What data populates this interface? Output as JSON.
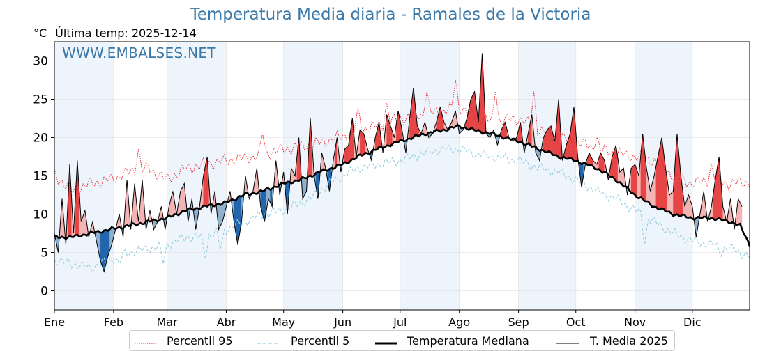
{
  "title": "Temperatura Media diaria - Ramales de la Victoria",
  "unit": "°C",
  "last_temp_label": "Última temp: 2025-12-14",
  "watermark": "WWW.EMBALSES.NET",
  "colors": {
    "p95": "#e8202a",
    "p5": "#9ccfe0",
    "median": "#000000",
    "media2025": "#000000",
    "above_strong": "#e64545",
    "above_light": "#f4b4b4",
    "below_strong": "#2166ac",
    "below_light": "#8fb1cd",
    "band": "#eef4fb",
    "title": "#3a78a8"
  },
  "chart_data": {
    "type": "line",
    "x_unit": "day of year",
    "xlim": [
      1,
      365
    ],
    "ylim": [
      -2.5,
      32.5
    ],
    "ytick_values": [
      0,
      5,
      10,
      15,
      20,
      25,
      30
    ],
    "month_labels": [
      "Ene",
      "Feb",
      "Mar",
      "Abr",
      "May",
      "Jun",
      "Jul",
      "Ago",
      "Sep",
      "Oct",
      "Nov",
      "Dic"
    ],
    "month_starts": [
      1,
      32,
      60,
      91,
      121,
      152,
      182,
      213,
      244,
      274,
      305,
      335
    ],
    "grid": true,
    "legend_position": "bottom",
    "series": [
      {
        "name": "Percentil 95",
        "style": "dotted red",
        "keypoints": [
          [
            1,
            15.2
          ],
          [
            10,
            13
          ],
          [
            20,
            14
          ],
          [
            30,
            14.5
          ],
          [
            40,
            15.5
          ],
          [
            50,
            16
          ],
          [
            60,
            14.5
          ],
          [
            70,
            16
          ],
          [
            80,
            16.5
          ],
          [
            91,
            17
          ],
          [
            105,
            17.5
          ],
          [
            121,
            18.5
          ],
          [
            135,
            19
          ],
          [
            150,
            20
          ],
          [
            160,
            21
          ],
          [
            170,
            21.5
          ],
          [
            182,
            22.5
          ],
          [
            195,
            23
          ],
          [
            205,
            23.5
          ],
          [
            213,
            24
          ],
          [
            220,
            23
          ],
          [
            230,
            22
          ],
          [
            244,
            22.5
          ],
          [
            255,
            21
          ],
          [
            265,
            20
          ],
          [
            274,
            19.5
          ],
          [
            285,
            18.5
          ],
          [
            295,
            18
          ],
          [
            305,
            17.5
          ],
          [
            315,
            17
          ],
          [
            325,
            15
          ],
          [
            335,
            14
          ],
          [
            345,
            14.5
          ],
          [
            355,
            14
          ],
          [
            365,
            14.2
          ]
        ],
        "spikes": [
          [
            45,
            18.5
          ],
          [
            110,
            20.5
          ],
          [
            160,
            24
          ],
          [
            175,
            24.5
          ],
          [
            196,
            26
          ],
          [
            211,
            27.5
          ],
          [
            232,
            26
          ],
          [
            252,
            26
          ],
          [
            285,
            20
          ],
          [
            345,
            16.5
          ]
        ]
      },
      {
        "name": "Percentil 5",
        "style": "dashed light blue",
        "keypoints": [
          [
            1,
            4
          ],
          [
            10,
            3.5
          ],
          [
            20,
            3
          ],
          [
            30,
            4
          ],
          [
            40,
            5
          ],
          [
            50,
            5.5
          ],
          [
            60,
            6
          ],
          [
            70,
            7
          ],
          [
            80,
            7
          ],
          [
            91,
            8
          ],
          [
            100,
            9
          ],
          [
            110,
            10
          ],
          [
            121,
            10.5
          ],
          [
            135,
            12
          ],
          [
            145,
            14
          ],
          [
            152,
            15
          ],
          [
            160,
            16
          ],
          [
            170,
            16.5
          ],
          [
            182,
            17
          ],
          [
            195,
            18
          ],
          [
            205,
            18.5
          ],
          [
            213,
            18.5
          ],
          [
            220,
            18
          ],
          [
            230,
            17.5
          ],
          [
            244,
            17
          ],
          [
            255,
            16
          ],
          [
            265,
            15.5
          ],
          [
            274,
            14.5
          ],
          [
            285,
            13
          ],
          [
            295,
            12
          ],
          [
            305,
            10.5
          ],
          [
            315,
            9
          ],
          [
            325,
            7.5
          ],
          [
            335,
            6.5
          ],
          [
            345,
            6
          ],
          [
            355,
            5.5
          ],
          [
            365,
            4.5
          ]
        ],
        "dips": [
          [
            35,
            3.5
          ],
          [
            58,
            3.5
          ],
          [
            80,
            4.2
          ],
          [
            88,
            5.5
          ],
          [
            310,
            6
          ],
          [
            350,
            4.5
          ]
        ]
      },
      {
        "name": "Temperatura Mediana",
        "style": "thick black",
        "keypoints": [
          [
            1,
            7
          ],
          [
            10,
            7
          ],
          [
            20,
            7.5
          ],
          [
            30,
            8
          ],
          [
            40,
            8.5
          ],
          [
            50,
            9
          ],
          [
            60,
            9.5
          ],
          [
            70,
            10.5
          ],
          [
            80,
            11
          ],
          [
            91,
            11.5
          ],
          [
            100,
            12.5
          ],
          [
            110,
            13
          ],
          [
            121,
            14
          ],
          [
            130,
            14.5
          ],
          [
            140,
            15.5
          ],
          [
            152,
            16.5
          ],
          [
            160,
            17.5
          ],
          [
            170,
            18.5
          ],
          [
            182,
            19.5
          ],
          [
            195,
            20.5
          ],
          [
            205,
            21
          ],
          [
            213,
            21.5
          ],
          [
            220,
            21
          ],
          [
            230,
            20.5
          ],
          [
            244,
            19.5
          ],
          [
            255,
            18.5
          ],
          [
            265,
            17.5
          ],
          [
            274,
            17
          ],
          [
            285,
            16
          ],
          [
            295,
            14.5
          ],
          [
            305,
            12.5
          ],
          [
            315,
            11
          ],
          [
            325,
            10
          ],
          [
            335,
            9.5
          ],
          [
            345,
            9.5
          ],
          [
            355,
            9
          ],
          [
            360,
            8.5
          ],
          [
            365,
            6
          ]
        ]
      },
      {
        "name": "T. Media 2025",
        "style": "thin black",
        "keypoints": [
          [
            1,
            7.5
          ],
          [
            3,
            5
          ],
          [
            5,
            12
          ],
          [
            7,
            6
          ],
          [
            9,
            16.5
          ],
          [
            11,
            7.5
          ],
          [
            13,
            17
          ],
          [
            15,
            9
          ],
          [
            17,
            10.5
          ],
          [
            19,
            7
          ],
          [
            21,
            9
          ],
          [
            23,
            6.5
          ],
          [
            25,
            4
          ],
          [
            27,
            2.5
          ],
          [
            29,
            4.5
          ],
          [
            31,
            6
          ],
          [
            33,
            8
          ],
          [
            35,
            10
          ],
          [
            37,
            7
          ],
          [
            39,
            14.5
          ],
          [
            41,
            8
          ],
          [
            43,
            14
          ],
          [
            45,
            9
          ],
          [
            47,
            14.5
          ],
          [
            49,
            8
          ],
          [
            51,
            10.5
          ],
          [
            53,
            8
          ],
          [
            55,
            9
          ],
          [
            57,
            11
          ],
          [
            59,
            8
          ],
          [
            61,
            11
          ],
          [
            63,
            13
          ],
          [
            65,
            10
          ],
          [
            67,
            13
          ],
          [
            69,
            14
          ],
          [
            71,
            9
          ],
          [
            73,
            12
          ],
          [
            75,
            8
          ],
          [
            77,
            11
          ],
          [
            79,
            15
          ],
          [
            81,
            17.5
          ],
          [
            83,
            10
          ],
          [
            85,
            13
          ],
          [
            87,
            8
          ],
          [
            89,
            9
          ],
          [
            91,
            11
          ],
          [
            93,
            13
          ],
          [
            95,
            9
          ],
          [
            97,
            6
          ],
          [
            99,
            9
          ],
          [
            101,
            15
          ],
          [
            103,
            12
          ],
          [
            105,
            13
          ],
          [
            107,
            16
          ],
          [
            109,
            11
          ],
          [
            111,
            9
          ],
          [
            113,
            12
          ],
          [
            115,
            11
          ],
          [
            117,
            17
          ],
          [
            119,
            12.5
          ],
          [
            121,
            15.5
          ],
          [
            123,
            10
          ],
          [
            125,
            16
          ],
          [
            127,
            15
          ],
          [
            129,
            20
          ],
          [
            131,
            12
          ],
          [
            133,
            13
          ],
          [
            135,
            22.5
          ],
          [
            137,
            15
          ],
          [
            139,
            12
          ],
          [
            141,
            18
          ],
          [
            143,
            16
          ],
          [
            145,
            13
          ],
          [
            147,
            17
          ],
          [
            149,
            20
          ],
          [
            151,
            15.5
          ],
          [
            153,
            18.5
          ],
          [
            155,
            19
          ],
          [
            157,
            22.5
          ],
          [
            159,
            17.5
          ],
          [
            161,
            21
          ],
          [
            163,
            20.5
          ],
          [
            165,
            18.5
          ],
          [
            167,
            17
          ],
          [
            169,
            20
          ],
          [
            171,
            22
          ],
          [
            173,
            18
          ],
          [
            175,
            23
          ],
          [
            177,
            21.5
          ],
          [
            179,
            20
          ],
          [
            181,
            23.5
          ],
          [
            183,
            21
          ],
          [
            185,
            18
          ],
          [
            187,
            22.5
          ],
          [
            189,
            26.5
          ],
          [
            191,
            21.5
          ],
          [
            193,
            20.5
          ],
          [
            195,
            22
          ],
          [
            197,
            20
          ],
          [
            199,
            20.5
          ],
          [
            201,
            22
          ],
          [
            203,
            24
          ],
          [
            205,
            22
          ],
          [
            207,
            21
          ],
          [
            209,
            22
          ],
          [
            211,
            23.5
          ],
          [
            213,
            20.5
          ],
          [
            215,
            21
          ],
          [
            217,
            22.5
          ],
          [
            219,
            25
          ],
          [
            221,
            26
          ],
          [
            223,
            22
          ],
          [
            225,
            31
          ],
          [
            227,
            20.5
          ],
          [
            229,
            20
          ],
          [
            231,
            21
          ],
          [
            233,
            19
          ],
          [
            235,
            21
          ],
          [
            237,
            22
          ],
          [
            239,
            20
          ],
          [
            241,
            19.5
          ],
          [
            243,
            20
          ],
          [
            245,
            22
          ],
          [
            247,
            18
          ],
          [
            249,
            20.5
          ],
          [
            251,
            23
          ],
          [
            253,
            18
          ],
          [
            255,
            17
          ],
          [
            257,
            20
          ],
          [
            259,
            21
          ],
          [
            261,
            21.5
          ],
          [
            263,
            19.5
          ],
          [
            265,
            25
          ],
          [
            267,
            17
          ],
          [
            269,
            19
          ],
          [
            271,
            20.5
          ],
          [
            273,
            24
          ],
          [
            275,
            17.5
          ],
          [
            277,
            13.5
          ],
          [
            279,
            16.5
          ],
          [
            281,
            18
          ],
          [
            283,
            17
          ],
          [
            285,
            16.5
          ],
          [
            287,
            18
          ],
          [
            289,
            17
          ],
          [
            291,
            14.5
          ],
          [
            293,
            17.5
          ],
          [
            295,
            19
          ],
          [
            297,
            15.5
          ],
          [
            299,
            16
          ],
          [
            301,
            12.5
          ],
          [
            303,
            16
          ],
          [
            305,
            16.5
          ],
          [
            307,
            15
          ],
          [
            309,
            20.5
          ],
          [
            311,
            16
          ],
          [
            313,
            13
          ],
          [
            315,
            15
          ],
          [
            317,
            17.5
          ],
          [
            319,
            20
          ],
          [
            321,
            16
          ],
          [
            323,
            12.5
          ],
          [
            325,
            13
          ],
          [
            327,
            20.5
          ],
          [
            329,
            15
          ],
          [
            331,
            11
          ],
          [
            333,
            12.5
          ],
          [
            335,
            11
          ],
          [
            337,
            7
          ],
          [
            339,
            10
          ],
          [
            341,
            13
          ],
          [
            343,
            9
          ],
          [
            345,
            11
          ],
          [
            347,
            14.5
          ],
          [
            349,
            17.5
          ],
          [
            351,
            11
          ],
          [
            353,
            9
          ],
          [
            355,
            12
          ],
          [
            357,
            8
          ],
          [
            359,
            12
          ],
          [
            361,
            11
          ]
        ]
      }
    ]
  },
  "legend": {
    "p95_label": "Percentil 95",
    "p5_label": "Percentil 5",
    "median_label": "Temperatura Mediana",
    "media2025_label": "T. Media 2025"
  }
}
